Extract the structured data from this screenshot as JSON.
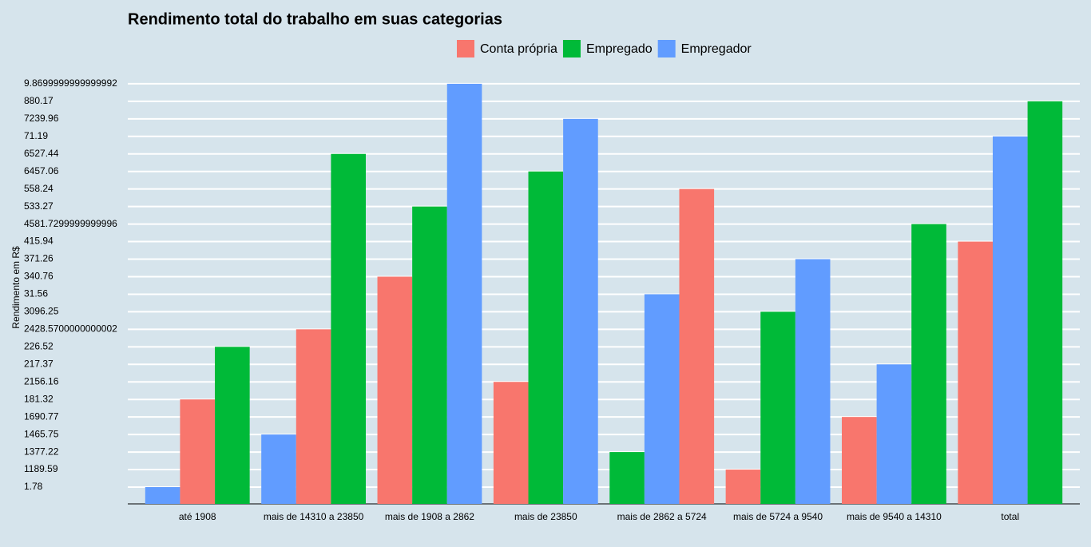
{
  "chart_data": {
    "type": "bar",
    "title": "Rendimento total do trabalho em suas categorias",
    "y_label": "Rendimento em R$",
    "y_scale": "discrete",
    "grid": true,
    "legend": "top",
    "categories": [
      "até 1908",
      "mais de 14310 a 23850",
      "mais de 1908 a 2862",
      "mais de 23850",
      "mais de 2862 a 5724",
      "mais de 5724 a 9540",
      "mais de 9540 a 14310",
      "total"
    ],
    "series": [
      {
        "name": "Conta própria",
        "color": "#f8766d",
        "values": [
          181.32,
          2428.57,
          340.76,
          2156.16,
          558.24,
          1189.59,
          1690.77,
          415.94
        ]
      },
      {
        "name": "Empregado",
        "color": "#00ba38",
        "values": [
          226.52,
          6527.44,
          533.27,
          6457.06,
          1377.22,
          3096.25,
          4581.73,
          880.17
        ]
      },
      {
        "name": "Empregador",
        "color": "#619cff",
        "values": [
          1.78,
          1465.75,
          9.87,
          7239.96,
          31.56,
          371.26,
          217.37,
          71.19
        ]
      }
    ],
    "yticks": [
      1.78,
      1189.59,
      1377.22,
      1465.75,
      1690.77,
      181.32,
      2156.16,
      217.37,
      226.52,
      {
        "value": 2428.57,
        "label": "2428.5700000000002"
      },
      3096.25,
      31.56,
      340.76,
      371.26,
      415.94,
      {
        "value": 4581.73,
        "label": "4581.7299999999996"
      },
      533.27,
      558.24,
      6457.06,
      6527.44,
      71.19,
      7239.96,
      880.17,
      {
        "value": 9.87,
        "label": "9.8699999999999992"
      }
    ]
  }
}
